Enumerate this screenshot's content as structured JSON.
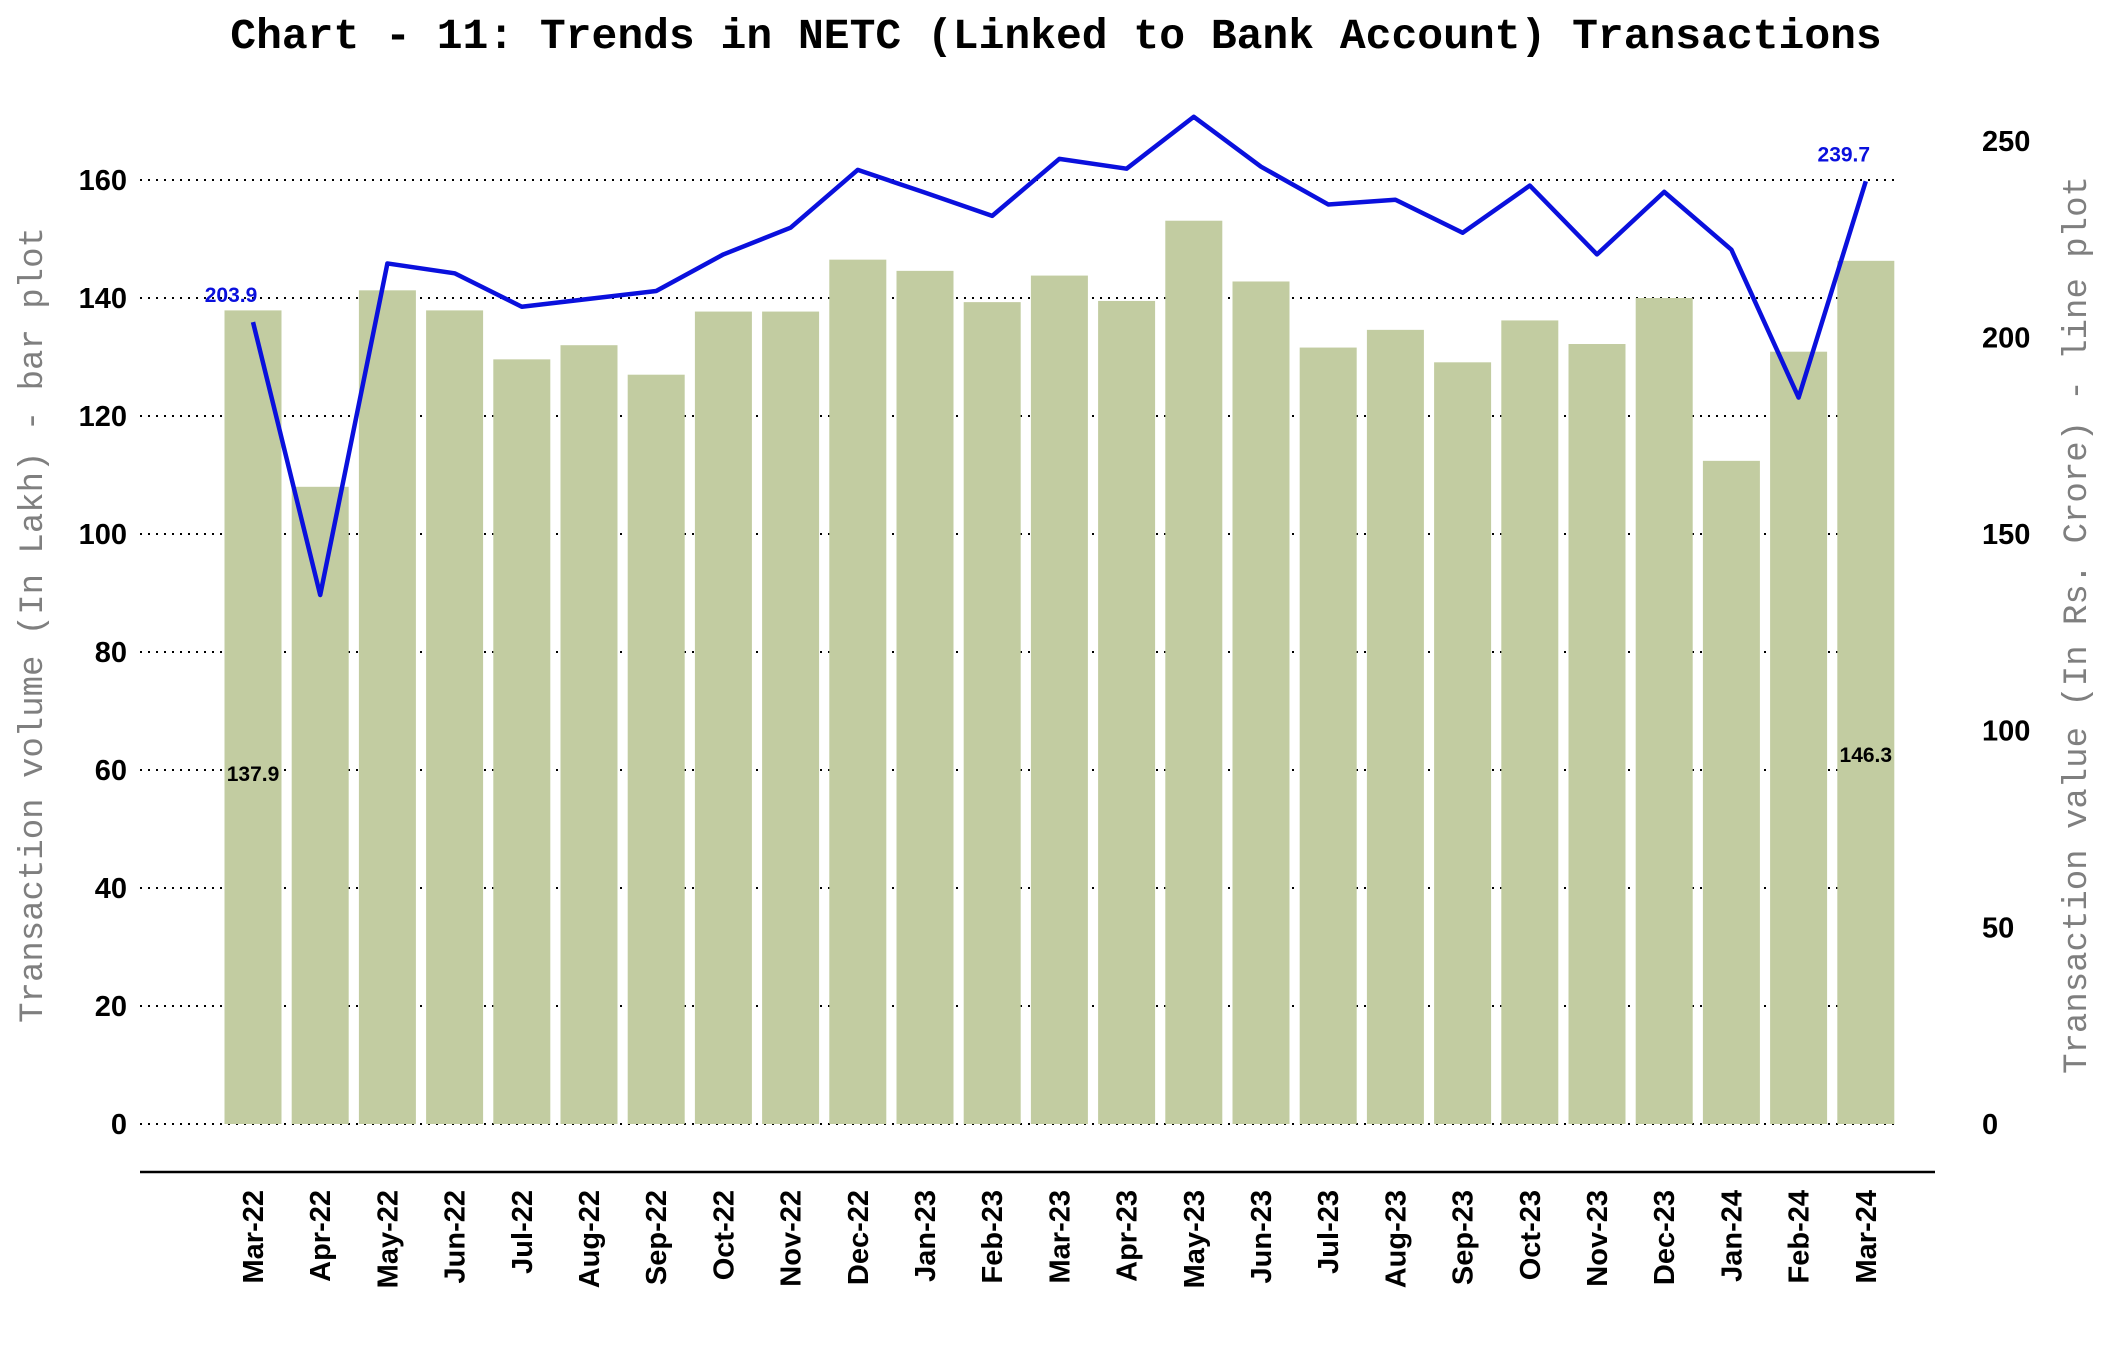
{
  "chart_data": {
    "type": "bar",
    "title": "Chart - 11: Trends in NETC (Linked to Bank Account) Transactions",
    "ylabel_left": "Transaction volume (In Lakh) - bar plot",
    "ylabel_right": "Transaction value (In Rs. Crore) - line plot",
    "ylim_left": [
      0,
      170
    ],
    "yticks_left": [
      0,
      20,
      40,
      60,
      80,
      100,
      120,
      140,
      160
    ],
    "ylim_right": [
      0,
      255
    ],
    "yticks_right": [
      0,
      50,
      100,
      150,
      200,
      250
    ],
    "grid": "horizontal dotted",
    "categories": [
      "Mar-22",
      "Apr-22",
      "May-22",
      "Jun-22",
      "Jul-22",
      "Aug-22",
      "Sep-22",
      "Oct-22",
      "Nov-22",
      "Dec-22",
      "Jan-23",
      "Feb-23",
      "Mar-23",
      "Apr-23",
      "May-23",
      "Jun-23",
      "Jul-23",
      "Aug-23",
      "Sep-23",
      "Oct-23",
      "Nov-23",
      "Dec-23",
      "Jan-24",
      "Feb-24",
      "Mar-24"
    ],
    "series": [
      {
        "type": "bar",
        "axis": "left",
        "color": "#c2cca1",
        "values": [
          137.9,
          108,
          141.3,
          137.9,
          129.6,
          132,
          127,
          137.7,
          137.7,
          146.5,
          144.6,
          139.3,
          143.8,
          139.5,
          153.1,
          142.8,
          131.6,
          134.6,
          129.1,
          136.2,
          132.2,
          140,
          112.4,
          130.9,
          146.3
        ]
      },
      {
        "type": "line",
        "axis": "right",
        "color": "#0a10dd",
        "values": [
          203.9,
          134.5,
          218.8,
          216.3,
          207.8,
          209.8,
          211.8,
          221.1,
          227.9,
          242.6,
          236.8,
          230.9,
          245.4,
          242.9,
          256.1,
          243.4,
          233.8,
          235,
          226.6,
          238.6,
          221.1,
          237,
          222.3,
          184.7,
          239.7
        ]
      }
    ],
    "data_labels": {
      "line_first": "203.9",
      "line_last": "239.7",
      "bar_first": "137.9",
      "bar_last": "146.3"
    }
  }
}
